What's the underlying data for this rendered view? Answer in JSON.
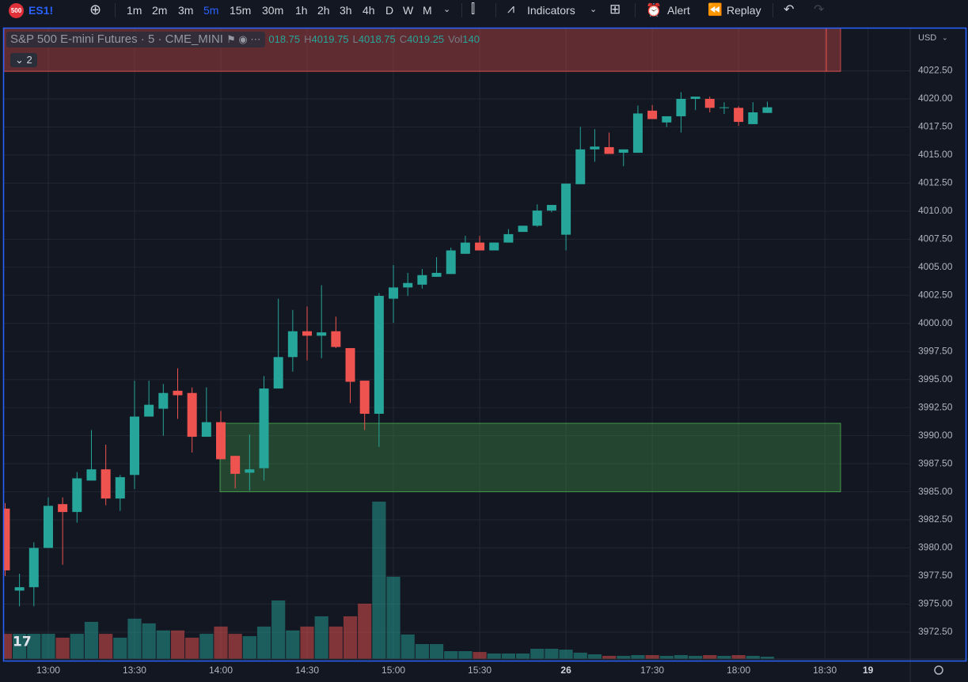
{
  "toolbar": {
    "badge": "500",
    "symbol": "ES1!",
    "intervals": [
      "1m",
      "2m",
      "3m",
      "5m",
      "15m",
      "30m",
      "1h",
      "2h",
      "3h",
      "4h",
      "D",
      "W",
      "M"
    ],
    "indicators": "Indicators",
    "alert": "Alert",
    "replay": "Replay"
  },
  "legend": {
    "title": "S&P 500 E-mini Futures · 5 · CME_MINI",
    "collapsed_count": "2",
    "items": [
      {
        "value": "018.75"
      },
      {
        "key": "H",
        "value": "4019.75"
      },
      {
        "key": "L",
        "value": "4018.75"
      },
      {
        "key": "C",
        "value": "4019.25"
      },
      {
        "key": "Vol",
        "value": "140"
      }
    ]
  },
  "chart_data": {
    "type": "candlestick",
    "currency": "USD",
    "up_color": "#26a69a",
    "down_color": "#ef5350",
    "grid": true,
    "categories": [
      null,
      null,
      null,
      "13:00",
      null,
      null,
      null,
      null,
      null,
      "13:30",
      null,
      null,
      null,
      null,
      null,
      "14:00",
      null,
      null,
      null,
      null,
      null,
      "14:30",
      null,
      null,
      null,
      null,
      null,
      "15:00",
      null,
      null,
      null,
      null,
      null,
      "15:30",
      null,
      null,
      null,
      null,
      null,
      "26",
      null,
      null,
      null,
      null,
      null,
      "17:30",
      null,
      null,
      null,
      null,
      null,
      "18:00",
      null,
      null,
      null,
      null,
      null,
      "18:30",
      null,
      null,
      "19"
    ],
    "open": [
      3983.5,
      3976.2,
      3976.5,
      3980,
      3983.9,
      3983.2,
      3986,
      3987,
      3984.4,
      3986.5,
      3991.7,
      3992.4,
      3994,
      3993.8,
      3989.9,
      3991.2,
      3988.2,
      3986.7,
      3987.1,
      3994.2,
      3997,
      3999.3,
      3998.9,
      3999.3,
      3997.8,
      3994.9,
      3991.95,
      4002.2,
      4003.2,
      4003.45,
      4004.15,
      4004.4,
      4006.2,
      4007.2,
      4006.5,
      4007.2,
      4008.15,
      4008.7,
      4010.05,
      4007.9,
      4012.4,
      4015.5,
      4015.7,
      4015.2,
      4015.2,
      4018.95,
      4017.9,
      4018.45,
      4020,
      4020,
      4019.2,
      4019.2,
      4017.75,
      4018.75,
      null,
      null,
      null,
      null,
      null,
      null,
      null
    ],
    "high": [
      3984,
      3977.7,
      3980.5,
      3984.5,
      3984.5,
      3986.75,
      3990.5,
      3989.2,
      3986.5,
      3994.9,
      3994.9,
      3994.6,
      3996,
      3994.3,
      3994.3,
      3992.2,
      3988.2,
      3990.1,
      3995.3,
      4002.2,
      4001.2,
      4001.5,
      4003.4,
      4000.6,
      3997.8,
      3994.9,
      4002.7,
      4005.2,
      4004.5,
      4004.85,
      4005.9,
      4006.75,
      4007.8,
      4007.8,
      4007.2,
      4008.4,
      4008.7,
      4010.6,
      4010.55,
      4012.45,
      4017.5,
      4017.3,
      4017,
      4015.5,
      4019.4,
      4019.45,
      4018.45,
      4020.6,
      4020.2,
      4020.2,
      4019.7,
      4019.35,
      4019.7,
      4019.75,
      null,
      null,
      null,
      null,
      null,
      null,
      null
    ],
    "low": [
      3977.5,
      3974.8,
      3974.8,
      3980,
      3978.5,
      3982.25,
      3986,
      3983.8,
      3983.3,
      3985.25,
      3991.7,
      3990,
      3991.5,
      3988.5,
      3989.9,
      3987.9,
      3985.3,
      3985.1,
      3986,
      3994.2,
      3995.7,
      3996.7,
      3996.9,
      3997.8,
      3992.9,
      3990.5,
      3989,
      4000.05,
      4002.45,
      4003.1,
      4004.15,
      4004.4,
      4006.2,
      4006.5,
      4006.5,
      4007.2,
      4008.15,
      4008.6,
      4009.9,
      4006.5,
      4012.4,
      4014.4,
      4015.1,
      4014,
      4015.2,
      4018.2,
      4017.5,
      4017,
      4019,
      4018.8,
      4018.65,
      4017.6,
      4017.75,
      4018.75,
      null,
      null,
      null,
      null,
      null,
      null,
      null
    ],
    "close": [
      3978,
      3976.5,
      3980,
      3983.75,
      3983.2,
      3986.2,
      3987,
      3984.4,
      3986.3,
      3991.7,
      3992.75,
      3993.8,
      3993.6,
      3989.9,
      3991.2,
      3987.9,
      3986.6,
      3987,
      3994.2,
      3997,
      3999.3,
      3998.9,
      3999.2,
      3997.9,
      3994.8,
      3991.95,
      4002.45,
      4003.2,
      4003.6,
      4004.3,
      4004.5,
      4006.5,
      4007.2,
      4006.5,
      4007.2,
      4007.95,
      4008.7,
      4010.05,
      4010.55,
      4012.45,
      4015.5,
      4015.75,
      4015.1,
      4015.5,
      4018.7,
      4018.2,
      4018.45,
      4020,
      4020.2,
      4019.2,
      4019.25,
      4017.95,
      4018.8,
      4019.25,
      null,
      null,
      null,
      null,
      null,
      null,
      null
    ],
    "volume": [
      1500,
      1500,
      1500,
      1500,
      1270,
      1500,
      2210,
      1500,
      1270,
      2400,
      2120,
      1700,
      1700,
      1270,
      1500,
      1930,
      1500,
      1360,
      1930,
      3480,
      1700,
      1930,
      2540,
      1930,
      2540,
      3290,
      9350,
      4890,
      1460,
      890,
      890,
      470,
      470,
      420,
      330,
      330,
      330,
      610,
      610,
      560,
      380,
      280,
      190,
      190,
      235,
      235,
      190,
      235,
      190,
      235,
      190,
      235,
      190,
      140,
      null,
      null,
      null,
      null,
      null,
      null,
      null
    ],
    "volume_lim": [
      0,
      37450
    ],
    "ylim": [
      3970.1,
      4026.27
    ],
    "yticks": [
      {
        "value": 3972.5,
        "label": "3972.50"
      },
      {
        "value": 3975,
        "label": "3975.00"
      },
      {
        "value": 3977.5,
        "label": "3977.50"
      },
      {
        "value": 3980,
        "label": "3980.00"
      },
      {
        "value": 3982.5,
        "label": "3982.50"
      },
      {
        "value": 3985,
        "label": "3985.00"
      },
      {
        "value": 3987.5,
        "label": "3987.50"
      },
      {
        "value": 3990,
        "label": "3990.00"
      },
      {
        "value": 3992.5,
        "label": "3992.50"
      },
      {
        "value": 3995,
        "label": "3995.00"
      },
      {
        "value": 3997.5,
        "label": "3997.50"
      },
      {
        "value": 4000,
        "label": "4000.00"
      },
      {
        "value": 4002.5,
        "label": "4002.50"
      },
      {
        "value": 4005,
        "label": "4005.00"
      },
      {
        "value": 4007.5,
        "label": "4007.50"
      },
      {
        "value": 4010,
        "label": "4010.00"
      },
      {
        "value": 4012.5,
        "label": "4012.50"
      },
      {
        "value": 4015,
        "label": "4015.00"
      },
      {
        "value": 4017.5,
        "label": "4017.50"
      },
      {
        "value": 4020,
        "label": "4020.00"
      },
      {
        "value": 4022.5,
        "label": "4022.50"
      }
    ],
    "zones": [
      {
        "high": 4026.5,
        "low": 4022.45,
        "color": "#ef5350"
      },
      {
        "high": 3991.1,
        "low": 3985,
        "color": "#4caf50"
      }
    ]
  }
}
